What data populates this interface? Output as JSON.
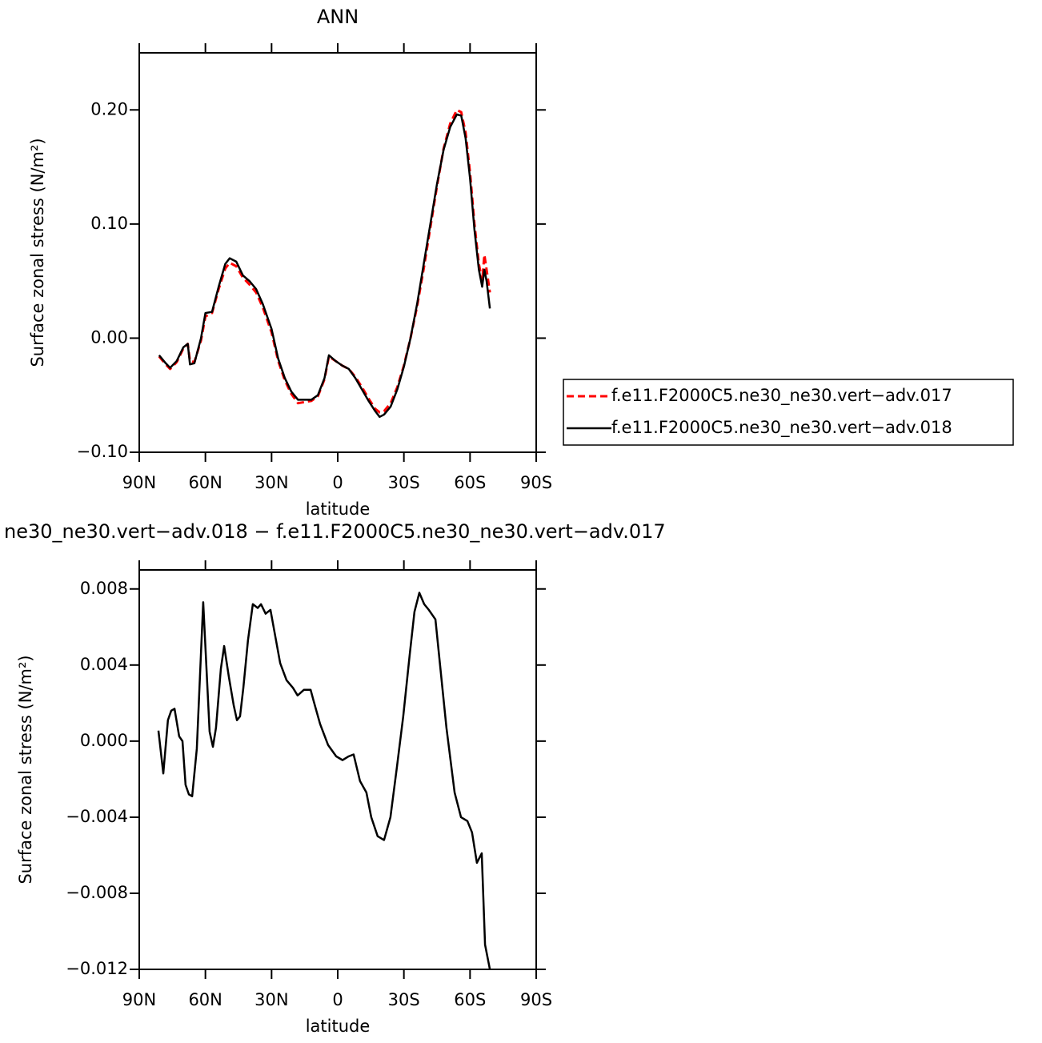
{
  "chart_data": [
    {
      "type": "line",
      "title": "ANN",
      "xlabel": "latitude",
      "ylabel": "Surface zonal stress (N/m²)",
      "x": [
        81,
        78,
        76,
        73,
        70,
        68,
        67,
        65,
        62,
        60,
        57,
        54,
        51,
        49,
        46,
        43,
        40,
        37,
        34,
        30,
        27,
        24,
        21,
        18,
        15,
        12,
        9,
        6,
        4,
        1,
        -2,
        -5,
        -8,
        -11,
        -14,
        -17,
        -19,
        -21,
        -24,
        -27,
        -30,
        -33,
        -36,
        -39,
        -42,
        -45,
        -48,
        -51,
        -54,
        -56,
        -58,
        -60,
        -62,
        -64,
        -65.5,
        -66.5,
        -67.5,
        -69
      ],
      "series": [
        {
          "name": "f.e11.F2000C5.ne30_ne30.vert−adv.017",
          "color": "#ff0000",
          "dash": "dashed",
          "values": [
            -0.016,
            -0.023,
            -0.027,
            -0.021,
            -0.009,
            -0.005,
            -0.02,
            -0.021,
            -0.002,
            0.019,
            0.022,
            0.043,
            0.061,
            0.066,
            0.063,
            0.053,
            0.047,
            0.04,
            0.027,
            0.005,
            -0.02,
            -0.037,
            -0.049,
            -0.057,
            -0.056,
            -0.055,
            -0.051,
            -0.036,
            -0.016,
            -0.02,
            -0.024,
            -0.027,
            -0.034,
            -0.043,
            -0.053,
            -0.062,
            -0.065,
            -0.064,
            -0.057,
            -0.043,
            -0.024,
            0.0,
            0.028,
            0.061,
            0.097,
            0.133,
            0.166,
            0.188,
            0.2,
            0.198,
            0.18,
            0.145,
            0.1,
            0.065,
            0.05,
            0.073,
            0.06,
            0.04
          ]
        },
        {
          "name": "f.e11.F2000C5.ne30_ne30.vert−adv.018",
          "color": "#000000",
          "dash": "solid",
          "values": [
            -0.015,
            -0.022,
            -0.026,
            -0.02,
            -0.008,
            -0.005,
            -0.023,
            -0.022,
            0.0,
            0.022,
            0.023,
            0.045,
            0.065,
            0.07,
            0.067,
            0.055,
            0.05,
            0.043,
            0.03,
            0.008,
            -0.018,
            -0.035,
            -0.047,
            -0.054,
            -0.054,
            -0.054,
            -0.05,
            -0.035,
            -0.015,
            -0.02,
            -0.024,
            -0.027,
            -0.035,
            -0.045,
            -0.055,
            -0.064,
            -0.069,
            -0.067,
            -0.06,
            -0.045,
            -0.025,
            0.0,
            0.03,
            0.065,
            0.1,
            0.135,
            0.165,
            0.185,
            0.196,
            0.195,
            0.175,
            0.14,
            0.095,
            0.06,
            0.045,
            0.06,
            0.05,
            0.026
          ]
        }
      ],
      "xlim": [
        90,
        -90
      ],
      "xticks": [
        {
          "value": 90,
          "label": "90N"
        },
        {
          "value": 60,
          "label": "60N"
        },
        {
          "value": 30,
          "label": "30N"
        },
        0,
        {
          "value": -30,
          "label": "30S"
        },
        {
          "value": -60,
          "label": "60S"
        },
        {
          "value": -90,
          "label": "90S"
        }
      ],
      "ylim": [
        -0.1,
        0.25
      ],
      "yticks": [
        {
          "value": -0.1,
          "label": "−0.10"
        },
        {
          "value": 0,
          "label": "0.00"
        },
        {
          "value": 0.1,
          "label": "0.10"
        },
        {
          "value": 0.2,
          "label": "0.20"
        }
      ]
    },
    {
      "type": "line",
      "title": "ne30_ne30.vert−adv.018 − f.e11.F2000C5.ne30_ne30.vert−adv.017",
      "xlabel": "latitude",
      "ylabel": "Surface zonal stress (N/m²)",
      "x": [
        81.3,
        79.1,
        77,
        75.5,
        74,
        71.9,
        70.4,
        69,
        67.5,
        66,
        63.9,
        61,
        58.1,
        56.6,
        55.2,
        53,
        51.5,
        49.4,
        47.2,
        45.7,
        44.3,
        42.8,
        40.7,
        38.5,
        36.3,
        34.8,
        32.7,
        30.5,
        28.3,
        26.1,
        23.2,
        20.3,
        18.2,
        15.3,
        12.3,
        10.9,
        8,
        4.4,
        0.7,
        -2.2,
        -5,
        -7.2,
        -10.1,
        -13,
        -15.2,
        -18.1,
        -21,
        -23.9,
        -26.8,
        -29.7,
        -32.6,
        -34.8,
        -37,
        -39.2,
        -41.3,
        -44.3,
        -46.4,
        -49.3,
        -53,
        -55.9,
        -58.8,
        -60.9,
        -63.1,
        -65.3,
        -66.8,
        -69
      ],
      "color": "#000000",
      "values": [
        0.00055,
        -0.0017,
        0.0011,
        0.0016,
        0.0017,
        0.00025,
        0,
        -0.0023,
        -0.0028,
        -0.0029,
        -0.0004,
        0.0073,
        0.0005,
        -0.0003,
        0.0007,
        0.0038,
        0.005,
        0.0034,
        0.0019,
        0.0011,
        0.0013,
        0.0028,
        0.0053,
        0.0072,
        0.007,
        0.0072,
        0.0067,
        0.0069,
        0.0055,
        0.0041,
        0.0032,
        0.0028,
        0.0024,
        0.0027,
        0.0027,
        0.0021,
        0.0009,
        -0.0002,
        -0.0008,
        -0.001,
        -0.0008,
        -0.0007,
        -0.0021,
        -0.0027,
        -0.004,
        -0.005,
        -0.0052,
        -0.004,
        -0.0014,
        0.0013,
        0.0045,
        0.0068,
        0.0078,
        0.0072,
        0.0069,
        0.0064,
        0.004,
        0.0007,
        -0.0027,
        -0.004,
        -0.0042,
        -0.0048,
        -0.0064,
        -0.0059,
        -0.0107,
        -0.012
      ],
      "xlim": [
        90,
        -90
      ],
      "xticks": [
        {
          "value": 90,
          "label": "90N"
        },
        {
          "value": 60,
          "label": "60N"
        },
        {
          "value": 30,
          "label": "30N"
        },
        0,
        {
          "value": -30,
          "label": "30S"
        },
        {
          "value": -60,
          "label": "60S"
        },
        {
          "value": -90,
          "label": "90S"
        }
      ],
      "ylim": [
        -0.012,
        0.009
      ],
      "yticks": [
        {
          "value": -0.012,
          "label": "−0.012"
        },
        {
          "value": -0.008,
          "label": "−0.008"
        },
        {
          "value": -0.004,
          "label": "−0.004"
        },
        {
          "value": 0,
          "label": "0.000"
        },
        0.004,
        0.008
      ]
    }
  ]
}
